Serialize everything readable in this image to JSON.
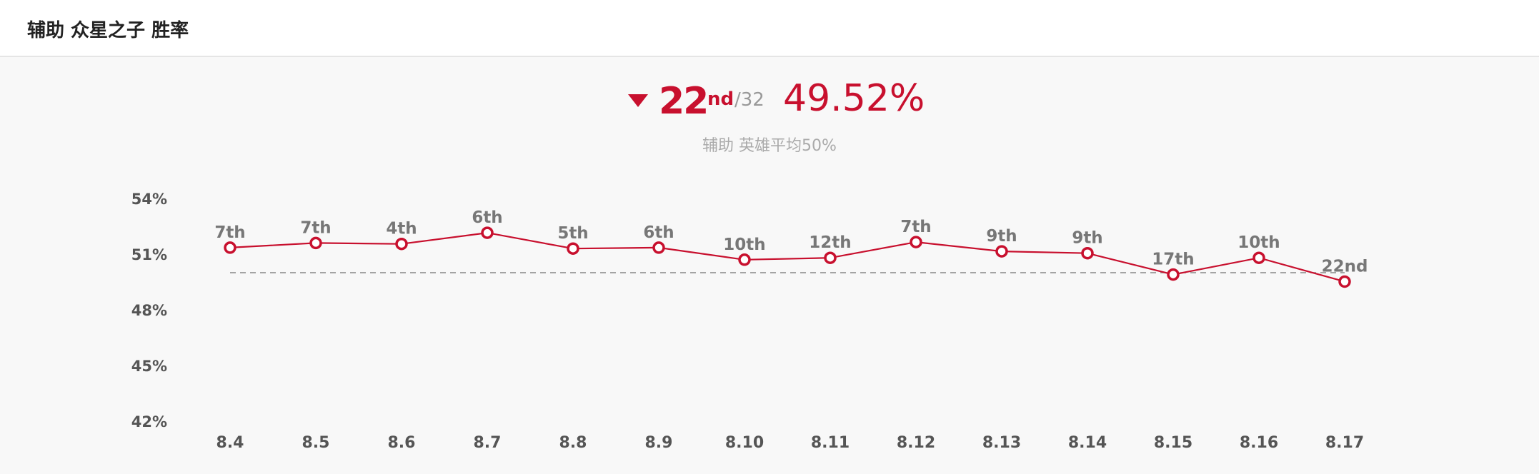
{
  "header": {
    "title": "辅助 众星之子 胜率"
  },
  "summary": {
    "rank_number": "22",
    "rank_suffix": "nd",
    "rank_total": "/32",
    "win_rate": "49.52%",
    "average_note": "辅助 英雄平均50%",
    "trend": "down"
  },
  "colors": {
    "accent": "#c8102e",
    "muted": "#999999",
    "axis_text": "#555555",
    "rank_label": "#777777",
    "avg_line": "#888888"
  },
  "chart_data": {
    "type": "line",
    "x": [
      "8.4",
      "8.5",
      "8.6",
      "8.7",
      "8.8",
      "8.9",
      "8.10",
      "8.11",
      "8.12",
      "8.13",
      "8.14",
      "8.15",
      "8.16",
      "8.17"
    ],
    "series": [
      {
        "values": [
          51.35,
          51.6,
          51.55,
          52.15,
          51.3,
          51.35,
          50.7,
          50.8,
          51.65,
          51.15,
          51.05,
          49.9,
          50.8,
          49.52
        ],
        "point_labels": [
          "7th",
          "7th",
          "4th",
          "6th",
          "5th",
          "6th",
          "10th",
          "12th",
          "7th",
          "9th",
          "9th",
          "17th",
          "10th",
          "22nd"
        ]
      }
    ],
    "yticks": [
      "54%",
      "51%",
      "48%",
      "45%",
      "42%"
    ],
    "ylim": [
      42,
      54
    ],
    "reference_line": 50,
    "grid": false
  }
}
